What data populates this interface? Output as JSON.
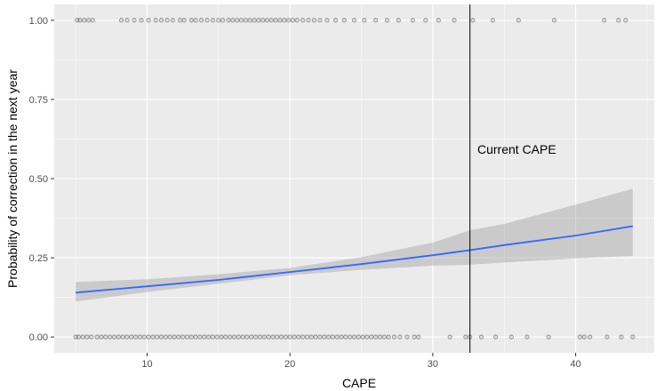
{
  "chart_data": {
    "type": "scatter",
    "title": "",
    "xlabel": "CAPE",
    "ylabel": "Probability of correction in the next year",
    "xlim": [
      3.5,
      45.5
    ],
    "ylim": [
      -0.05,
      1.05
    ],
    "x_ticks": [
      10,
      20,
      30,
      40
    ],
    "x_tick_labels": [
      "10",
      "20",
      "30",
      "40"
    ],
    "y_ticks": [
      0,
      0.25,
      0.5,
      0.75,
      1
    ],
    "y_tick_labels": [
      "0.00",
      "0.25",
      "0.50",
      "0.75",
      "1.00"
    ],
    "grid": true,
    "legend": "none",
    "colors": {
      "panel": "#ebebeb",
      "grid": "#ffffff",
      "points": "#000000",
      "fit_line": "#3366ff",
      "ribbon": "#999999",
      "vline": "#000000",
      "text": "#4d4d4d"
    },
    "points_y1": [
      5.1,
      5.3,
      5.6,
      5.9,
      6.2,
      8.2,
      8.6,
      9.1,
      9.6,
      10.1,
      10.6,
      11.0,
      11.4,
      11.8,
      12.3,
      12.6,
      13.1,
      13.4,
      13.8,
      14.2,
      14.6,
      15.0,
      15.3,
      15.7,
      16.0,
      16.3,
      16.6,
      16.9,
      17.2,
      17.5,
      17.8,
      18.1,
      18.4,
      18.7,
      19.0,
      19.3,
      19.6,
      19.9,
      20.2,
      20.5,
      20.9,
      21.3,
      21.7,
      22.1,
      22.6,
      23.2,
      23.8,
      24.5,
      25.2,
      26.0,
      26.8,
      27.6,
      28.6,
      29.5,
      30.4,
      31.5,
      32.8,
      34.2,
      36.0,
      38.5,
      42.0,
      43.0,
      43.5
    ],
    "points_y0": [
      5.0,
      5.2,
      5.5,
      5.8,
      6.1,
      6.5,
      6.8,
      7.1,
      7.4,
      7.7,
      8.0,
      8.3,
      8.6,
      8.9,
      9.2,
      9.5,
      9.8,
      10.1,
      10.4,
      10.7,
      11.0,
      11.3,
      11.6,
      11.9,
      12.2,
      12.5,
      12.8,
      13.1,
      13.4,
      13.7,
      14.0,
      14.3,
      14.6,
      14.9,
      15.2,
      15.5,
      15.8,
      16.1,
      16.4,
      16.7,
      17.0,
      17.3,
      17.6,
      17.9,
      18.2,
      18.5,
      18.8,
      19.1,
      19.4,
      19.7,
      20.0,
      20.3,
      20.6,
      20.9,
      21.2,
      21.5,
      21.8,
      22.1,
      22.4,
      22.7,
      23.0,
      23.3,
      23.6,
      23.9,
      24.2,
      24.5,
      24.8,
      25.1,
      25.4,
      25.7,
      26.0,
      26.3,
      26.6,
      26.9,
      27.3,
      27.7,
      28.2,
      28.7,
      29.0,
      31.2,
      32.3,
      32.6,
      33.4,
      34.4,
      35.5,
      36.6,
      38.1,
      40.3,
      40.6,
      41.0,
      42.2,
      43.2,
      44.0
    ],
    "fit_line": {
      "x": [
        5,
        10,
        15,
        20,
        25,
        30,
        32.6,
        35,
        40,
        44
      ],
      "y": [
        0.14,
        0.16,
        0.18,
        0.205,
        0.23,
        0.258,
        0.274,
        0.29,
        0.32,
        0.35
      ]
    },
    "ribbon": {
      "x": [
        5,
        10,
        15,
        20,
        25,
        30,
        32.6,
        35,
        40,
        44
      ],
      "lower": [
        0.112,
        0.142,
        0.168,
        0.195,
        0.212,
        0.225,
        0.228,
        0.235,
        0.248,
        0.256
      ],
      "upper": [
        0.174,
        0.182,
        0.198,
        0.218,
        0.252,
        0.298,
        0.337,
        0.357,
        0.418,
        0.468
      ]
    },
    "vline": {
      "x": 32.6,
      "label": "Current CAPE"
    }
  }
}
